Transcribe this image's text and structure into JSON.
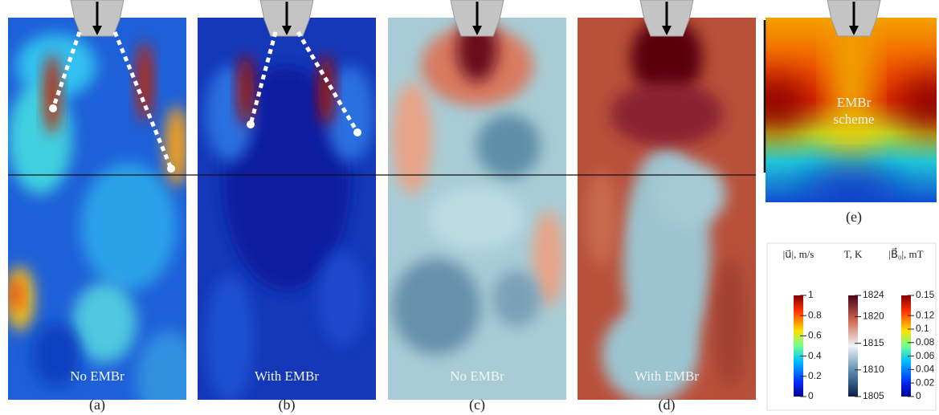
{
  "panels": [
    {
      "label": "(a)",
      "caption": "No EMBr"
    },
    {
      "label": "(b)",
      "caption": "With EMBr"
    },
    {
      "label": "(c)",
      "caption": "No EMBr"
    },
    {
      "label": "(d)",
      "caption": "With EMBr"
    },
    {
      "label": "(e)",
      "caption": [
        "EMBr",
        "scheme"
      ]
    }
  ],
  "colorbars": [
    {
      "title": "|u⃗|, m/s",
      "range": [
        0,
        1
      ],
      "ticks": [
        0,
        0.2,
        0.4,
        0.6,
        0.8,
        1
      ]
    },
    {
      "title": "T, K",
      "range": [
        1805,
        1824
      ],
      "ticks": [
        1805,
        1810,
        1815,
        1820,
        1824
      ]
    },
    {
      "title": "|B⃗₀|, mT",
      "range": [
        0,
        0.15
      ],
      "ticks": [
        0,
        0.02,
        0.04,
        0.06,
        0.08,
        0.1,
        0.12,
        0.15
      ]
    }
  ]
}
